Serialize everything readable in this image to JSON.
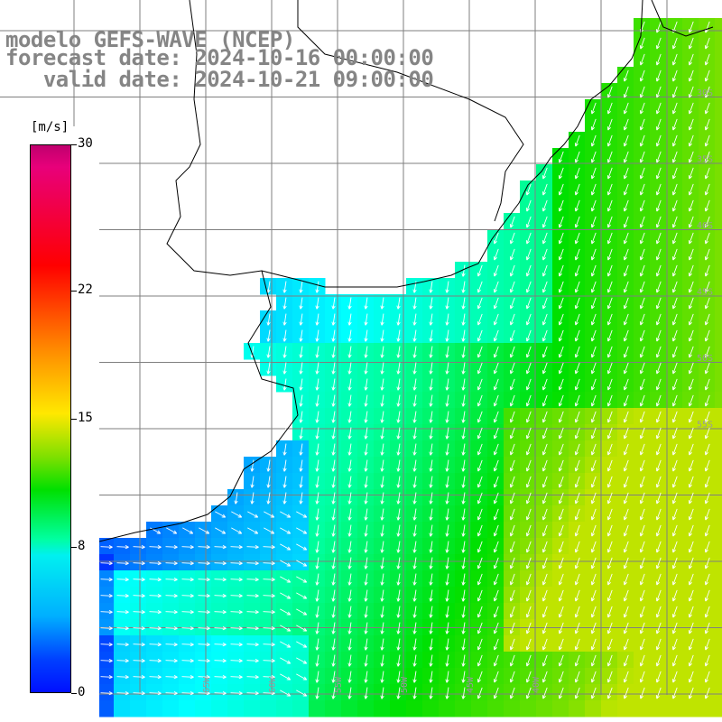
{
  "title": {
    "line1": "modelo GEFS-WAVE (NCEP)",
    "line2": "forecast date: 2024-10-16 00:00:00",
    "line3": "   valid date: 2024-10-21 09:00:00"
  },
  "colorbar": {
    "unit": "[m/s]",
    "ticks": [
      {
        "label": "30",
        "value": 30
      },
      {
        "label": "22",
        "value": 22
      },
      {
        "label": "15",
        "value": 15
      },
      {
        "label": "8",
        "value": 8
      },
      {
        "label": "0",
        "value": 0
      }
    ],
    "colors": {
      "max": "#c0006e",
      "high": "#ff0000",
      "mid": "#ffe800",
      "green": "#00e000",
      "cyan": "#00ffff",
      "low": "#0010ff"
    }
  },
  "map": {
    "background_color": "#ffffff",
    "coast_color": "#000000",
    "grid_color": "#7f7f7f",
    "arrow_color": "#ffffff",
    "lon_labels": [
      "65W",
      "60W",
      "55W",
      "50W",
      "45W",
      "40W"
    ],
    "lat_labels": [
      "30S",
      "35S",
      "40S",
      "45S",
      "50S",
      "55S"
    ]
  }
}
